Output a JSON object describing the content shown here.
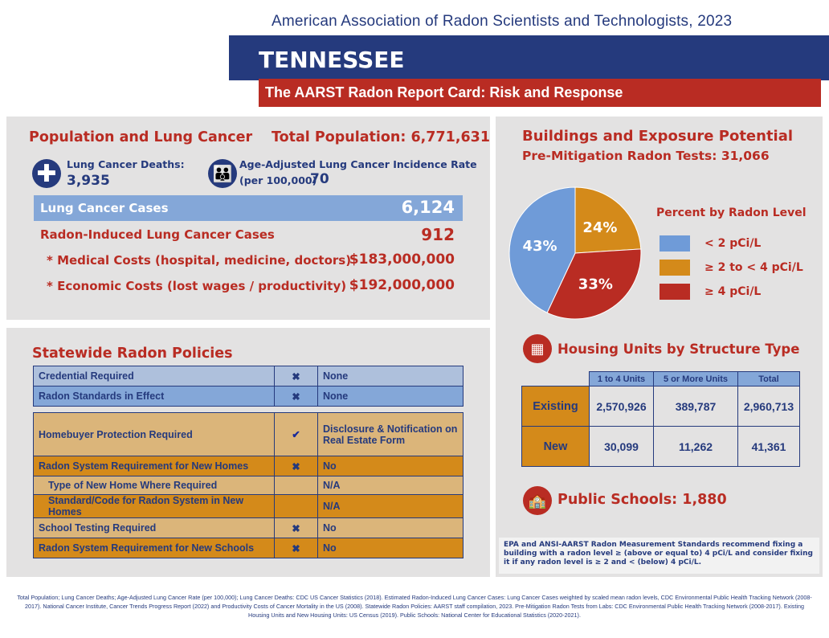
{
  "header": {
    "org": "American Association of Radon Scientists and Technologists, 2023",
    "state": "TENNESSEE",
    "subtitle": "The AARST Radon Report Card: Risk and Response"
  },
  "population": {
    "title": "Population and Lung Cancer",
    "total_population": "Total Population: 6,771,631",
    "deaths_label": "Lung Cancer Deaths:",
    "deaths_value": "3,935",
    "incidence_label": "Age-Adjusted Lung Cancer Incidence Rate",
    "incidence_unit": "(per 100,000)",
    "incidence_value": "70",
    "cases_label": "Lung Cancer Cases",
    "cases_value": "6,124",
    "radon_cases_label": "Radon-Induced Lung Cancer Cases",
    "radon_cases_value": "912",
    "medical_label": "* Medical Costs (hospital, medicine, doctors)",
    "medical_value": "$183,000,000",
    "economic_label": "* Economic Costs (lost wages / productivity)",
    "economic_value": "$192,000,000",
    "icons": [
      "medical-cross-icon",
      "family-icon"
    ]
  },
  "policies": {
    "title": "Statewide Radon Policies",
    "rows": [
      {
        "label": "Credential Required",
        "status": "x",
        "value": "None"
      },
      {
        "label": "Radon Standards in Effect",
        "status": "x",
        "value": "None"
      },
      {
        "label": "Homebuyer Protection Required",
        "status": "check",
        "value": "Disclosure & Notification on Real Estate Form"
      },
      {
        "label": "Radon System Requirement for New Homes",
        "status": "x",
        "value": "No"
      },
      {
        "label": "Type of New Home Where Required",
        "status": "",
        "value": "N/A"
      },
      {
        "label": "Standard/Code for Radon System in New Homes",
        "status": "",
        "value": "N/A"
      },
      {
        "label": "School Testing Required",
        "status": "x",
        "value": "No"
      },
      {
        "label": "Radon System Requirement for New Schools",
        "status": "x",
        "value": "No"
      }
    ]
  },
  "buildings": {
    "title": "Buildings and Exposure Potential",
    "tests": "Pre-Mitigation Radon Tests: 31,066",
    "legend_title": "Percent by Radon Level"
  },
  "chart_data": {
    "type": "pie",
    "legend_title": "Percent by Radon Level",
    "slices": [
      {
        "label": "≥ 2 to < 4 pCi/L",
        "value": 24,
        "text": "24%",
        "color": "#d48a1a"
      },
      {
        "label": "≥ 4 pCi/L",
        "value": 33,
        "text": "33%",
        "color": "#b92c23"
      },
      {
        "label": "< 2 pCi/L",
        "value": 43,
        "text": "43%",
        "color": "#6f9bd8"
      }
    ],
    "legend_order": [
      2,
      0,
      1
    ],
    "legend_placement": "right"
  },
  "housing": {
    "title": "Housing Units by Structure Type",
    "columns": [
      "1 to 4 Units",
      "5 or More Units",
      "Total"
    ],
    "rows": [
      {
        "label": "Existing",
        "values": [
          "2,570,926",
          "389,787",
          "2,960,713"
        ]
      },
      {
        "label": "New",
        "values": [
          "30,099",
          "11,262",
          "41,361"
        ]
      }
    ]
  },
  "schools": {
    "label": "Public Schools: 1,880"
  },
  "note": "EPA and ANSI-AARST Radon Measurement Standards recommend fixing a building with a radon level ≥ (above or equal to) 4 pCi/L and consider fixing it if any radon level is ≥ 2 and < (below) 4 pCi/L.",
  "footer": "Total Population; Lung Cancer Deaths; Age-Adjusted Lung Cancer Rate (per 100,000); Lung Cancer Deaths: CDC US Cancer Statistics (2018). Estimated Radon-Induced Lung Cancer Cases: Lung Cancer Cases weighted by scaled mean radon levels, CDC Environmental Public Health Tracking Network (2008-2017). National Cancer Institute, Cancer Trends Progress Report (2022) and Productivity Costs of Cancer Mortality in the US (2008). Statewide Radon Policies: AARST staff compilation, 2023. Pre-Mitigation Radon Tests from Labs: CDC Environmental Public Health Tracking Network (2008-2017). Existing Housing Units and New Housing Units: US Census (2019). Public Schools: National Center for Educational Statistics (2020-2021)."
}
